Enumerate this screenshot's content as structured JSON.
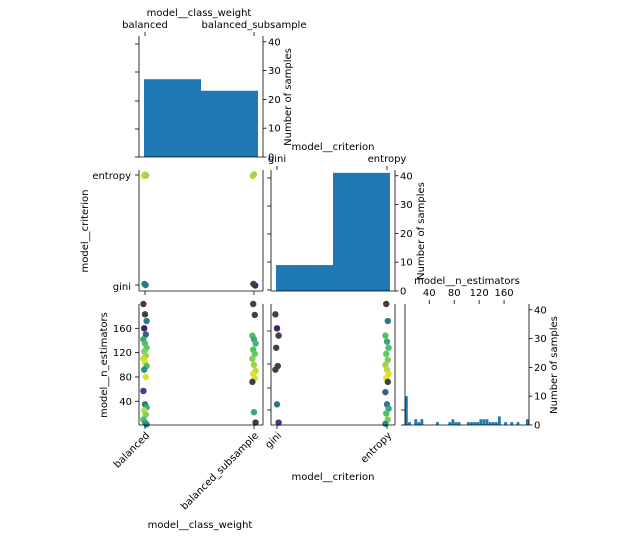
{
  "colors": {
    "bar": "#1f77b4",
    "viridis": [
      "#440154",
      "#3b528b",
      "#21918c",
      "#5ec962",
      "#fde725"
    ],
    "grey_point": "#404040"
  },
  "chart_data": [
    {
      "id": "hist-class-weight",
      "type": "bar",
      "title": "model__class_weight",
      "categories": [
        "balanced",
        "balanced_subsample"
      ],
      "values": [
        27,
        23
      ],
      "ylabel": "Number of samples",
      "ylim": [
        0,
        42
      ],
      "yticks": [
        0,
        10,
        20,
        30,
        40
      ]
    },
    {
      "id": "hist-criterion",
      "type": "bar",
      "title": "model__criterion",
      "categories": [
        "gini",
        "entropy"
      ],
      "values": [
        9,
        41
      ],
      "ylabel": "Number of samples",
      "ylim": [
        0,
        42
      ],
      "yticks": [
        0,
        10,
        20,
        30,
        40
      ]
    },
    {
      "id": "hist-n-estimators",
      "type": "bar",
      "title": "model__n_estimators",
      "xlim": [
        1,
        200
      ],
      "xticks": [
        40,
        80,
        120,
        160
      ],
      "bin_values": [
        10,
        1,
        0,
        2,
        1,
        2,
        0,
        0,
        0,
        0,
        1,
        0,
        0,
        0,
        1,
        2,
        1,
        1,
        0,
        0,
        1,
        1,
        1,
        1,
        2,
        2,
        2,
        1,
        1,
        1,
        3,
        0,
        1,
        0,
        1,
        0,
        1,
        0,
        0,
        2
      ],
      "ylabel": "Number of samples",
      "ylim": [
        0,
        42
      ],
      "yticks": [
        0,
        10,
        20,
        30,
        40
      ]
    },
    {
      "id": "scatter-criterion-vs-class-weight",
      "type": "scatter",
      "x_categories": [
        "balanced",
        "balanced_subsample"
      ],
      "y_categories": [
        "gini",
        "entropy"
      ],
      "ylabel": "model__criterion",
      "points": [
        {
          "x": "balanced",
          "y": "entropy",
          "c": 0.95
        },
        {
          "x": "balanced",
          "y": "entropy",
          "c": 0.9
        },
        {
          "x": "balanced",
          "y": "entropy",
          "c": 0.85
        },
        {
          "x": "balanced",
          "y": "gini",
          "c": 0.45
        },
        {
          "x": "balanced",
          "y": "gini",
          "c": 0.4
        },
        {
          "x": "balanced_subsample",
          "y": "entropy",
          "c": 0.9
        },
        {
          "x": "balanced_subsample",
          "y": "entropy",
          "c": 0.85
        },
        {
          "x": "balanced_subsample",
          "y": "gini",
          "c": 0.1
        },
        {
          "x": "balanced_subsample",
          "y": "gini",
          "c": 0.0
        }
      ]
    },
    {
      "id": "scatter-n-estimators-vs-class-weight",
      "type": "scatter",
      "x_categories": [
        "balanced",
        "balanced_subsample"
      ],
      "xlabel": "model__class_weight",
      "ylabel": "model__n_estimators",
      "ylim": [
        1,
        200
      ],
      "yticks": [
        40,
        80,
        120,
        160
      ],
      "points": [
        {
          "x": "balanced",
          "y": 200,
          "c": 0.0
        },
        {
          "x": "balanced",
          "y": 183,
          "c": 0.0
        },
        {
          "x": "balanced",
          "y": 172,
          "c": 0.4
        },
        {
          "x": "balanced",
          "y": 160,
          "c": 0.1
        },
        {
          "x": "balanced",
          "y": 150,
          "c": 0.3
        },
        {
          "x": "balanced",
          "y": 142,
          "c": 0.6
        },
        {
          "x": "balanced",
          "y": 135,
          "c": 0.7
        },
        {
          "x": "balanced",
          "y": 128,
          "c": 0.75
        },
        {
          "x": "balanced",
          "y": 122,
          "c": 0.8
        },
        {
          "x": "balanced",
          "y": 115,
          "c": 0.85
        },
        {
          "x": "balanced",
          "y": 110,
          "c": 0.9
        },
        {
          "x": "balanced",
          "y": 104,
          "c": 0.95
        },
        {
          "x": "balanced",
          "y": 98,
          "c": 0.7
        },
        {
          "x": "balanced",
          "y": 92,
          "c": 0.5
        },
        {
          "x": "balanced",
          "y": 80,
          "c": 0.95
        },
        {
          "x": "balanced",
          "y": 57,
          "c": 0.2
        },
        {
          "x": "balanced",
          "y": 35,
          "c": 0.4
        },
        {
          "x": "balanced",
          "y": 30,
          "c": 0.6
        },
        {
          "x": "balanced",
          "y": 25,
          "c": 0.9
        },
        {
          "x": "balanced",
          "y": 18,
          "c": 0.8
        },
        {
          "x": "balanced",
          "y": 10,
          "c": 0.7
        },
        {
          "x": "balanced",
          "y": 5,
          "c": 0.6
        },
        {
          "x": "balanced",
          "y": 2,
          "c": 0.5
        },
        {
          "x": "balanced_subsample",
          "y": 200,
          "c": 0.0
        },
        {
          "x": "balanced_subsample",
          "y": 182,
          "c": 0.0
        },
        {
          "x": "balanced_subsample",
          "y": 148,
          "c": 0.7
        },
        {
          "x": "balanced_subsample",
          "y": 142,
          "c": 0.6
        },
        {
          "x": "balanced_subsample",
          "y": 135,
          "c": 0.65
        },
        {
          "x": "balanced_subsample",
          "y": 125,
          "c": 0.7
        },
        {
          "x": "balanced_subsample",
          "y": 118,
          "c": 0.75
        },
        {
          "x": "balanced_subsample",
          "y": 110,
          "c": 0.8
        },
        {
          "x": "balanced_subsample",
          "y": 100,
          "c": 0.85
        },
        {
          "x": "balanced_subsample",
          "y": 90,
          "c": 0.9
        },
        {
          "x": "balanced_subsample",
          "y": 85,
          "c": 0.95
        },
        {
          "x": "balanced_subsample",
          "y": 78,
          "c": 0.95
        },
        {
          "x": "balanced_subsample",
          "y": 72,
          "c": 0.0
        },
        {
          "x": "balanced_subsample",
          "y": 22,
          "c": 0.6
        },
        {
          "x": "balanced_subsample",
          "y": 5,
          "c": 0.0
        }
      ]
    },
    {
      "id": "scatter-n-estimators-vs-criterion",
      "type": "scatter",
      "x_categories": [
        "gini",
        "entropy"
      ],
      "xlabel": "model__criterion",
      "ylim": [
        1,
        200
      ],
      "points": [
        {
          "x": "gini",
          "y": 183,
          "c": 0.0
        },
        {
          "x": "gini",
          "y": 160,
          "c": 0.1
        },
        {
          "x": "gini",
          "y": 148,
          "c": 0.0
        },
        {
          "x": "gini",
          "y": 128,
          "c": 0.0
        },
        {
          "x": "gini",
          "y": 98,
          "c": 0.0
        },
        {
          "x": "gini",
          "y": 92,
          "c": 0.0
        },
        {
          "x": "gini",
          "y": 35,
          "c": 0.4
        },
        {
          "x": "gini",
          "y": 5,
          "c": 0.2
        },
        {
          "x": "entropy",
          "y": 200,
          "c": 0.0
        },
        {
          "x": "entropy",
          "y": 172,
          "c": 0.4
        },
        {
          "x": "entropy",
          "y": 148,
          "c": 0.7
        },
        {
          "x": "entropy",
          "y": 138,
          "c": 0.6
        },
        {
          "x": "entropy",
          "y": 128,
          "c": 0.7
        },
        {
          "x": "entropy",
          "y": 118,
          "c": 0.75
        },
        {
          "x": "entropy",
          "y": 108,
          "c": 0.8
        },
        {
          "x": "entropy",
          "y": 100,
          "c": 0.85
        },
        {
          "x": "entropy",
          "y": 92,
          "c": 0.9
        },
        {
          "x": "entropy",
          "y": 85,
          "c": 0.95
        },
        {
          "x": "entropy",
          "y": 78,
          "c": 0.95
        },
        {
          "x": "entropy",
          "y": 72,
          "c": 0.0
        },
        {
          "x": "entropy",
          "y": 55,
          "c": 0.3
        },
        {
          "x": "entropy",
          "y": 35,
          "c": 0.4
        },
        {
          "x": "entropy",
          "y": 28,
          "c": 0.6
        },
        {
          "x": "entropy",
          "y": 20,
          "c": 0.7
        },
        {
          "x": "entropy",
          "y": 10,
          "c": 0.8
        },
        {
          "x": "entropy",
          "y": 3,
          "c": 0.5
        }
      ]
    }
  ]
}
